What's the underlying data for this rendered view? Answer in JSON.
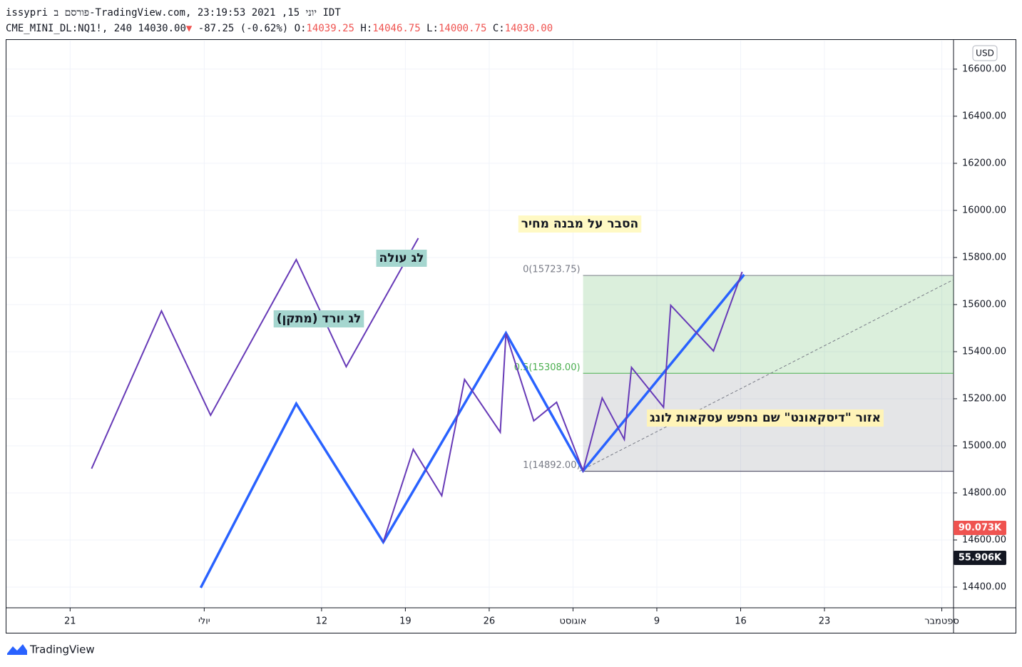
{
  "header": {
    "line1": "issypri פורסם ב-TradingView.com, יוני 15, 2021 23:19:53 IDT",
    "symbol": "CME_MINI_DL:NQ1!, 240",
    "price": "14030.00",
    "arrow": "▼",
    "change": "-87.25 (-0.62%)",
    "ohlc": [
      {
        "key": "O:",
        "value": "14039.25"
      },
      {
        "key": "H:",
        "value": "14046.75"
      },
      {
        "key": "L:",
        "value": "14000.75"
      },
      {
        "key": "C:",
        "value": "14030.00"
      }
    ]
  },
  "chart_data": {
    "type": "line",
    "xlim": [
      -3.8,
      52.7
    ],
    "ylim": [
      14312,
      16721
    ],
    "xticks": [
      {
        "value": 0,
        "label": "21"
      },
      {
        "value": 8,
        "label": "יולי"
      },
      {
        "value": 15,
        "label": "12"
      },
      {
        "value": 20,
        "label": "19"
      },
      {
        "value": 25,
        "label": "26"
      },
      {
        "value": 30,
        "label": "אוגוסט"
      },
      {
        "value": 35,
        "label": "9"
      },
      {
        "value": 40,
        "label": "16"
      },
      {
        "value": 45,
        "label": "23"
      },
      {
        "value": 52,
        "label": "ספטמבר"
      }
    ],
    "yticks": [
      {
        "value": 14400,
        "label": "14400.00"
      },
      {
        "value": 14600,
        "label": "14600.00"
      },
      {
        "value": 14800,
        "label": "14800.00"
      },
      {
        "value": 15000,
        "label": "15000.00"
      },
      {
        "value": 15200,
        "label": "15200.00"
      },
      {
        "value": 15400,
        "label": "15400.00"
      },
      {
        "value": 15600,
        "label": "15600.00"
      },
      {
        "value": 15800,
        "label": "15800.00"
      },
      {
        "value": 16000,
        "label": "16000.00"
      },
      {
        "value": 16200,
        "label": "16200.00"
      },
      {
        "value": 16400,
        "label": "16400.00"
      },
      {
        "value": 16600,
        "label": "16600.00"
      }
    ],
    "grid": true,
    "series": [
      {
        "color": "#673ab7",
        "width": 2,
        "x": [
          1.28,
          5.45,
          8.38,
          13.49,
          16.47,
          20.77
        ],
        "values": [
          14903,
          15573,
          15130,
          15791,
          15336,
          15882
        ]
      },
      {
        "color": "#2962ff",
        "width": 3.5,
        "x": [
          7.79,
          13.49,
          18.68,
          26.0,
          30.6,
          40.21
        ],
        "values": [
          14397,
          15179,
          14591,
          15479,
          14894,
          15727
        ]
      },
      {
        "color": "#673ab7",
        "width": 2,
        "x": [
          18.68,
          20.47,
          22.17,
          23.53,
          25.66,
          26.0,
          27.66,
          29.02,
          30.6,
          31.74,
          33.06,
          33.49,
          35.4,
          35.83,
          38.38,
          40.09
        ],
        "values": [
          14591,
          14985,
          14788,
          15282,
          15058,
          15476,
          15106,
          15185,
          14894,
          15203,
          15027,
          15333,
          15164,
          15597,
          15403,
          15739
        ]
      }
    ],
    "fib": {
      "x": 30.6,
      "levels": [
        15723.75,
        15308,
        14892
      ],
      "labels": [
        "0(15723.75)",
        "0.5(15308.00)",
        "1(14892.00)"
      ],
      "diagonal_end": [
        52.7,
        15706
      ]
    },
    "annotations": [
      "לג עולה",
      "(לג יורד (מתקן",
      "הסבר על מבנה מחיר",
      "אזור \"דיסקאונט\" שם נחפש עסקאות לונג"
    ],
    "currency": "USD",
    "volume_labels": [
      "90.073K",
      "55.906K"
    ]
  },
  "footer": "TradingView"
}
